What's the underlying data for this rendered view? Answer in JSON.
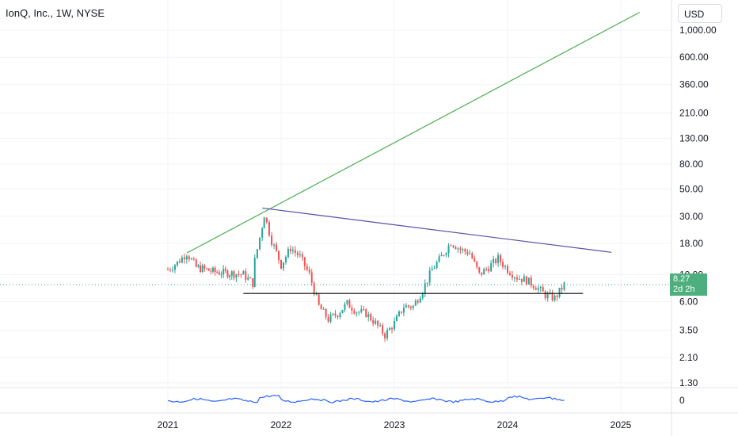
{
  "header": {
    "title": "IonQ, Inc., 1W, NYSE",
    "currency_button": "USD"
  },
  "last_price": {
    "value": "8.27",
    "countdown": "2d 2h"
  },
  "colors": {
    "up": "#26a69a",
    "down": "#ef5350",
    "resistance_line": "#5b4fa8",
    "trend_line": "#4caf50",
    "support_line": "#000000",
    "indicator": "#2962ff",
    "price_tag": "#4caf7d"
  },
  "chart_data": {
    "type": "candlestick",
    "title": "IonQ, Inc., 1W, NYSE",
    "y_scale": "log",
    "y_ticks": [
      "1,000.00",
      "600.00",
      "360.00",
      "210.00",
      "130.00",
      "80.00",
      "50.00",
      "30.00",
      "18.00",
      "10.00",
      "6.00",
      "3.50",
      "2.10",
      "1.30"
    ],
    "x_ticks": [
      "2021",
      "2022",
      "2023",
      "2024",
      "2025"
    ],
    "grid": true,
    "price_path": [
      [
        "2021-01",
        11.0
      ],
      [
        "2021-02",
        12.5
      ],
      [
        "2021-03",
        15.0
      ],
      [
        "2021-04",
        11.5
      ],
      [
        "2021-06",
        10.5
      ],
      [
        "2021-08",
        10.2
      ],
      [
        "2021-09",
        10.0
      ],
      [
        "2021-10",
        8.5
      ],
      [
        "2021-10",
        13.0
      ],
      [
        "2021-11",
        25.0
      ],
      [
        "2021-11",
        31.0
      ],
      [
        "2021-12",
        19.0
      ],
      [
        "2022-01",
        12.0
      ],
      [
        "2022-02",
        16.5
      ],
      [
        "2022-03",
        14.0
      ],
      [
        "2022-04",
        10.0
      ],
      [
        "2022-05",
        5.5
      ],
      [
        "2022-06",
        4.3
      ],
      [
        "2022-07",
        4.8
      ],
      [
        "2022-08",
        5.8
      ],
      [
        "2022-09",
        5.0
      ],
      [
        "2022-10",
        4.8
      ],
      [
        "2022-11",
        4.0
      ],
      [
        "2022-12",
        3.2
      ],
      [
        "2023-01",
        4.0
      ],
      [
        "2023-02",
        5.5
      ],
      [
        "2023-03",
        5.5
      ],
      [
        "2023-04",
        7.5
      ],
      [
        "2023-05",
        11.0
      ],
      [
        "2023-06",
        14.0
      ],
      [
        "2023-07",
        18.5
      ],
      [
        "2023-08",
        16.0
      ],
      [
        "2023-09",
        15.0
      ],
      [
        "2023-10",
        10.0
      ],
      [
        "2023-11",
        11.5
      ],
      [
        "2023-12",
        13.5
      ],
      [
        "2024-01",
        11.0
      ],
      [
        "2024-02",
        9.5
      ],
      [
        "2024-03",
        9.0
      ],
      [
        "2024-04",
        8.0
      ],
      [
        "2024-05",
        6.8
      ],
      [
        "2024-06",
        6.4
      ],
      [
        "2024-07",
        8.27
      ]
    ],
    "annotations": [
      {
        "type": "trend_line",
        "color": "green",
        "from": [
          "2021-03",
          15.0
        ],
        "to": [
          "2025-03",
          1400
        ]
      },
      {
        "type": "resistance_line",
        "color": "purple",
        "from": [
          "2021-11",
          35.0
        ],
        "to": [
          "2024-12",
          15.2
        ]
      },
      {
        "type": "support_line",
        "color": "black",
        "from": [
          "2021-09",
          7.0
        ],
        "to": [
          "2024-09",
          7.0
        ]
      }
    ],
    "indicator": {
      "type": "line",
      "value_label": "0"
    }
  }
}
